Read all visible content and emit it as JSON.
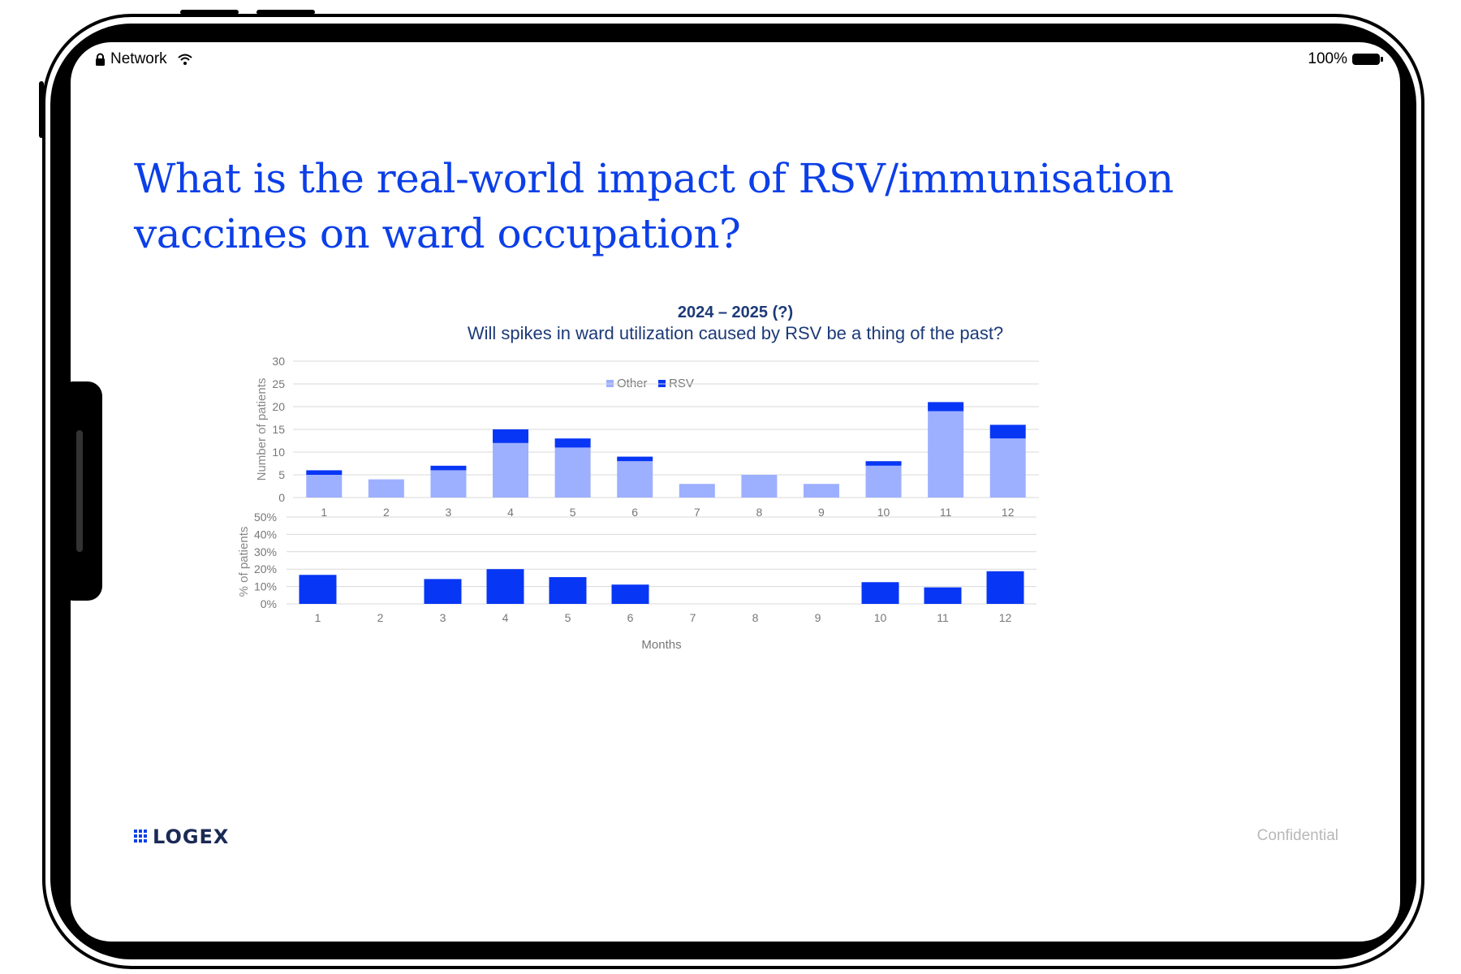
{
  "status_bar": {
    "network_label": "Network",
    "battery_label": "100%"
  },
  "slide": {
    "title": "What is the real-world impact of RSV/immunisation vaccines on ward occupation?",
    "footer_logo": "LOGEX",
    "footer_confidential": "Confidential"
  },
  "colors": {
    "other": "#9dafff",
    "rsv": "#0836f5",
    "title_blue": "#0c3fe8",
    "chart_title": "#1c3a78"
  },
  "chart_data": [
    {
      "type": "bar",
      "stacked": true,
      "title": "2024 – 2025 (?)",
      "subtitle": "Will spikes in ward utilization caused by RSV be a thing of the past?",
      "legend_position": "top-center",
      "ylabel": "Number of patients",
      "ylim": [
        0,
        30
      ],
      "yticks": [
        0,
        5,
        10,
        15,
        20,
        25,
        30
      ],
      "categories": [
        "1",
        "2",
        "3",
        "4",
        "5",
        "6",
        "7",
        "8",
        "9",
        "10",
        "11",
        "12"
      ],
      "series": [
        {
          "name": "Other",
          "values": [
            5,
            4,
            6,
            12,
            11,
            8,
            3,
            5,
            3,
            7,
            19,
            13
          ]
        },
        {
          "name": "RSV",
          "values": [
            1,
            0,
            1,
            3,
            2,
            1,
            0,
            0,
            0,
            1,
            2,
            3
          ]
        }
      ]
    },
    {
      "type": "bar",
      "xlabel": "Months",
      "ylabel": "% of patients",
      "ylim": [
        0,
        50
      ],
      "yticks": [
        "0%",
        "10%",
        "20%",
        "30%",
        "40%",
        "50%"
      ],
      "categories": [
        "1",
        "2",
        "3",
        "4",
        "5",
        "6",
        "7",
        "8",
        "9",
        "10",
        "11",
        "12"
      ],
      "values": [
        16.7,
        0,
        14.3,
        20,
        15.4,
        11.1,
        0,
        0,
        0,
        12.5,
        9.5,
        18.8
      ]
    }
  ]
}
